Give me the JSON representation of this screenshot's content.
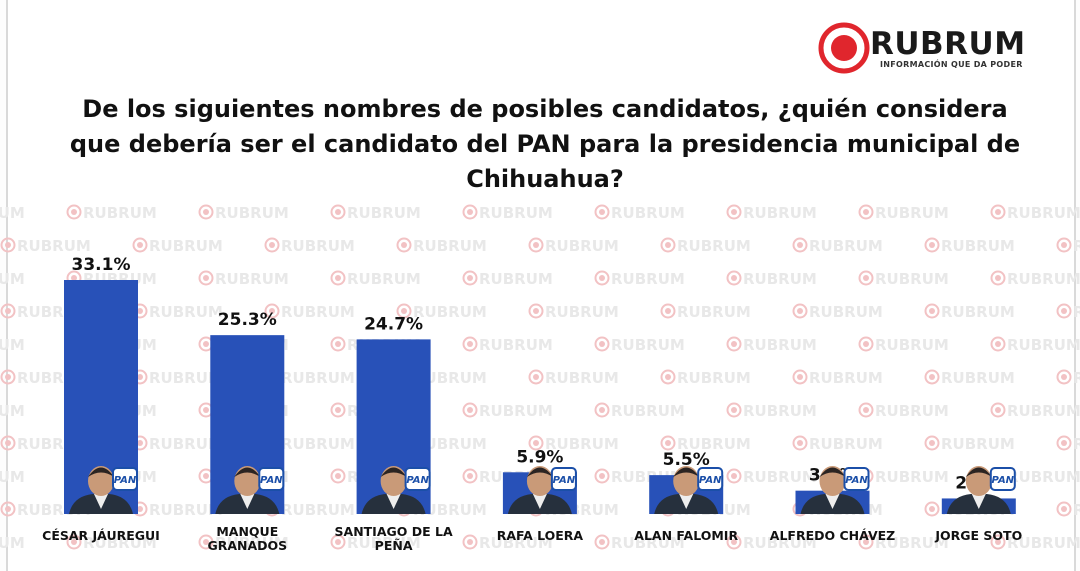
{
  "brand": {
    "name": "RUBRUM",
    "tagline": "INFORMACIÓN QUE DA PODER",
    "watermark": "RUBRUM",
    "color": "#e0262d"
  },
  "chart_data": {
    "type": "bar",
    "title": "De los siguientes nombres de posibles candidatos, ¿quién considera que debería ser el candidato del PAN para la presidencia municipal de Chihuahua?",
    "categories": [
      "CÉSAR JÁUREGUI",
      "MANQUE GRANADOS",
      "SANTIAGO DE LA PEÑA",
      "RAFA LOERA",
      "ALAN FALOMIR",
      "ALFREDO CHÁVEZ",
      "JORGE SOTO"
    ],
    "values": [
      33.1,
      25.3,
      24.7,
      5.9,
      5.5,
      3.3,
      2.2
    ],
    "value_labels": [
      "33.1%",
      "25.3%",
      "24.7%",
      "5.9%",
      "5.5%",
      "3.3%",
      "2.2%"
    ],
    "party_badge": "PAN",
    "bar_color": "#2851b8",
    "badge_color": "#1b4fa8",
    "xlabel": "",
    "ylabel": "",
    "ylim": [
      0,
      33.1
    ],
    "grid": false,
    "legend": "none"
  }
}
